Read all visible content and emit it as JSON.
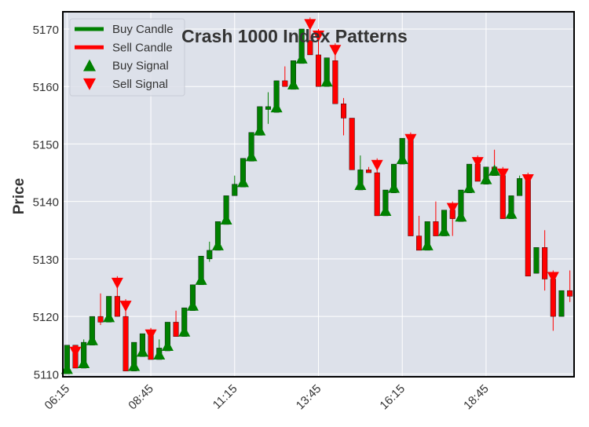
{
  "chart_data": {
    "type": "candlestick",
    "title": "Crash 1000 Index Patterns",
    "xlabel": "",
    "ylabel": "Price",
    "ylim": [
      5109.5,
      5173
    ],
    "y_ticks": [
      5110,
      5120,
      5130,
      5140,
      5150,
      5160,
      5170
    ],
    "x_tick_labels": [
      "06:15",
      "08:45",
      "11:15",
      "13:45",
      "16:15",
      "18:45"
    ],
    "x_tick_positions": [
      0,
      10,
      20,
      30,
      40,
      50
    ],
    "grid": true,
    "legend_position": "top-left",
    "legend": [
      {
        "label": "Buy Candle",
        "kind": "line",
        "color": "#008000"
      },
      {
        "label": "Sell Candle",
        "kind": "line",
        "color": "#ff0000"
      },
      {
        "label": "Buy Signal",
        "kind": "up-triangle",
        "color": "#008000"
      },
      {
        "label": "Sell Signal",
        "kind": "down-triangle",
        "color": "#ff0000"
      }
    ],
    "colors": {
      "buy": "#008000",
      "sell": "#ff0000",
      "plot_bg": "#dde1ea",
      "grid": "#ffffff"
    },
    "candles": [
      {
        "o": 5110,
        "h": 5115,
        "l": 5110,
        "c": 5115,
        "signal": "buy"
      },
      {
        "o": 5115,
        "h": 5115,
        "l": 5111,
        "c": 5111,
        "signal": "sell"
      },
      {
        "o": 5111,
        "h": 5116,
        "l": 5111,
        "c": 5115.5,
        "signal": "buy"
      },
      {
        "o": 5115,
        "h": 5120,
        "l": 5115,
        "c": 5120,
        "signal": "buy"
      },
      {
        "o": 5120,
        "h": 5124,
        "l": 5118.5,
        "c": 5119,
        "signal": null
      },
      {
        "o": 5119,
        "h": 5123.5,
        "l": 5119,
        "c": 5123.5,
        "signal": "buy"
      },
      {
        "o": 5123.5,
        "h": 5127,
        "l": 5120,
        "c": 5120,
        "signal": "sell"
      },
      {
        "o": 5120,
        "h": 5123,
        "l": 5110.5,
        "c": 5110.5,
        "signal": "sell"
      },
      {
        "o": 5110.5,
        "h": 5115.5,
        "l": 5110.5,
        "c": 5115.5,
        "signal": "buy"
      },
      {
        "o": 5113,
        "h": 5117,
        "l": 5113,
        "c": 5117,
        "signal": "buy"
      },
      {
        "o": 5117,
        "h": 5118,
        "l": 5112.5,
        "c": 5112.5,
        "signal": "sell"
      },
      {
        "o": 5112.5,
        "h": 5116,
        "l": 5112.5,
        "c": 5114.5,
        "signal": "buy"
      },
      {
        "o": 5114,
        "h": 5119,
        "l": 5114,
        "c": 5119,
        "signal": "buy"
      },
      {
        "o": 5119,
        "h": 5121,
        "l": 5116.5,
        "c": 5116.5,
        "signal": null
      },
      {
        "o": 5116.5,
        "h": 5121.5,
        "l": 5116.5,
        "c": 5121.5,
        "signal": "buy"
      },
      {
        "o": 5121,
        "h": 5125.5,
        "l": 5121,
        "c": 5125.5,
        "signal": "buy"
      },
      {
        "o": 5125.5,
        "h": 5130.5,
        "l": 5125.5,
        "c": 5130.5,
        "signal": "buy"
      },
      {
        "o": 5130,
        "h": 5133,
        "l": 5129.5,
        "c": 5131.5,
        "signal": null
      },
      {
        "o": 5131.5,
        "h": 5136.5,
        "l": 5131.5,
        "c": 5136.5,
        "signal": "buy"
      },
      {
        "o": 5136,
        "h": 5141,
        "l": 5136,
        "c": 5141,
        "signal": "buy"
      },
      {
        "o": 5141,
        "h": 5144.5,
        "l": 5141,
        "c": 5143,
        "signal": null
      },
      {
        "o": 5142.5,
        "h": 5147.5,
        "l": 5142.5,
        "c": 5147.5,
        "signal": "buy"
      },
      {
        "o": 5147,
        "h": 5152,
        "l": 5147,
        "c": 5152,
        "signal": "buy"
      },
      {
        "o": 5151.5,
        "h": 5156.5,
        "l": 5151.5,
        "c": 5156.5,
        "signal": "buy"
      },
      {
        "o": 5156,
        "h": 5159,
        "l": 5153.5,
        "c": 5156.5,
        "signal": null
      },
      {
        "o": 5155.5,
        "h": 5161,
        "l": 5155.5,
        "c": 5161,
        "signal": "buy"
      },
      {
        "o": 5161,
        "h": 5163.5,
        "l": 5160,
        "c": 5160,
        "signal": null
      },
      {
        "o": 5159.5,
        "h": 5164.5,
        "l": 5159.5,
        "c": 5164.5,
        "signal": "buy"
      },
      {
        "o": 5164,
        "h": 5170,
        "l": 5164,
        "c": 5170,
        "signal": "buy"
      },
      {
        "o": 5168,
        "h": 5172,
        "l": 5165.5,
        "c": 5165.5,
        "signal": "sell"
      },
      {
        "o": 5165.5,
        "h": 5170,
        "l": 5160,
        "c": 5160,
        "signal": "sell"
      },
      {
        "o": 5160,
        "h": 5165,
        "l": 5160,
        "c": 5165,
        "signal": "buy"
      },
      {
        "o": 5164.5,
        "h": 5167.5,
        "l": 5157,
        "c": 5157,
        "signal": "sell"
      },
      {
        "o": 5157,
        "h": 5158,
        "l": 5151.5,
        "c": 5154.5,
        "signal": null
      },
      {
        "o": 5154.5,
        "h": 5154.5,
        "l": 5145.5,
        "c": 5145.5,
        "signal": null
      },
      {
        "o": 5142,
        "h": 5148,
        "l": 5142,
        "c": 5145.5,
        "signal": "buy"
      },
      {
        "o": 5145.5,
        "h": 5146,
        "l": 5145,
        "c": 5145,
        "signal": null
      },
      {
        "o": 5145,
        "h": 5147.5,
        "l": 5137.5,
        "c": 5137.5,
        "signal": "sell"
      },
      {
        "o": 5137.5,
        "h": 5142,
        "l": 5137.5,
        "c": 5142,
        "signal": "buy"
      },
      {
        "o": 5141.5,
        "h": 5146.5,
        "l": 5141.5,
        "c": 5146.5,
        "signal": "buy"
      },
      {
        "o": 5146.5,
        "h": 5151,
        "l": 5146.5,
        "c": 5151,
        "signal": "buy"
      },
      {
        "o": 5151,
        "h": 5152,
        "l": 5134,
        "c": 5134,
        "signal": "sell"
      },
      {
        "o": 5134,
        "h": 5137.5,
        "l": 5131.5,
        "c": 5131.5,
        "signal": null
      },
      {
        "o": 5131.5,
        "h": 5136.5,
        "l": 5131.5,
        "c": 5136.5,
        "signal": "buy"
      },
      {
        "o": 5136.5,
        "h": 5140,
        "l": 5134,
        "c": 5134,
        "signal": null
      },
      {
        "o": 5134,
        "h": 5138.5,
        "l": 5134,
        "c": 5138.5,
        "signal": "buy"
      },
      {
        "o": 5138.5,
        "h": 5140,
        "l": 5134,
        "c": 5137,
        "signal": "sell"
      },
      {
        "o": 5136.5,
        "h": 5142,
        "l": 5136.5,
        "c": 5142,
        "signal": "buy"
      },
      {
        "o": 5141.5,
        "h": 5146.5,
        "l": 5141.5,
        "c": 5146.5,
        "signal": "buy"
      },
      {
        "o": 5146.5,
        "h": 5148,
        "l": 5143.5,
        "c": 5143.5,
        "signal": "sell"
      },
      {
        "o": 5143,
        "h": 5146,
        "l": 5143,
        "c": 5146,
        "signal": "buy"
      },
      {
        "o": 5146,
        "h": 5149,
        "l": 5144.5,
        "c": 5144.5,
        "signal": "buy"
      },
      {
        "o": 5144.5,
        "h": 5146,
        "l": 5137,
        "c": 5137,
        "signal": "sell"
      },
      {
        "o": 5137,
        "h": 5141,
        "l": 5137,
        "c": 5141,
        "signal": "buy"
      },
      {
        "o": 5141,
        "h": 5144.5,
        "l": 5141,
        "c": 5144,
        "signal": null
      },
      {
        "o": 5144,
        "h": 5145,
        "l": 5127,
        "c": 5127,
        "signal": "sell"
      },
      {
        "o": 5127.5,
        "h": 5132,
        "l": 5127.5,
        "c": 5132,
        "signal": null
      },
      {
        "o": 5132,
        "h": 5135,
        "l": 5124.5,
        "c": 5126.5,
        "signal": null
      },
      {
        "o": 5126.5,
        "h": 5128,
        "l": 5117.5,
        "c": 5120,
        "signal": "sell"
      },
      {
        "o": 5120,
        "h": 5124.5,
        "l": 5120,
        "c": 5124.5,
        "signal": null
      },
      {
        "o": 5124.5,
        "h": 5128,
        "l": 5122.5,
        "c": 5123.5,
        "signal": null
      }
    ]
  }
}
